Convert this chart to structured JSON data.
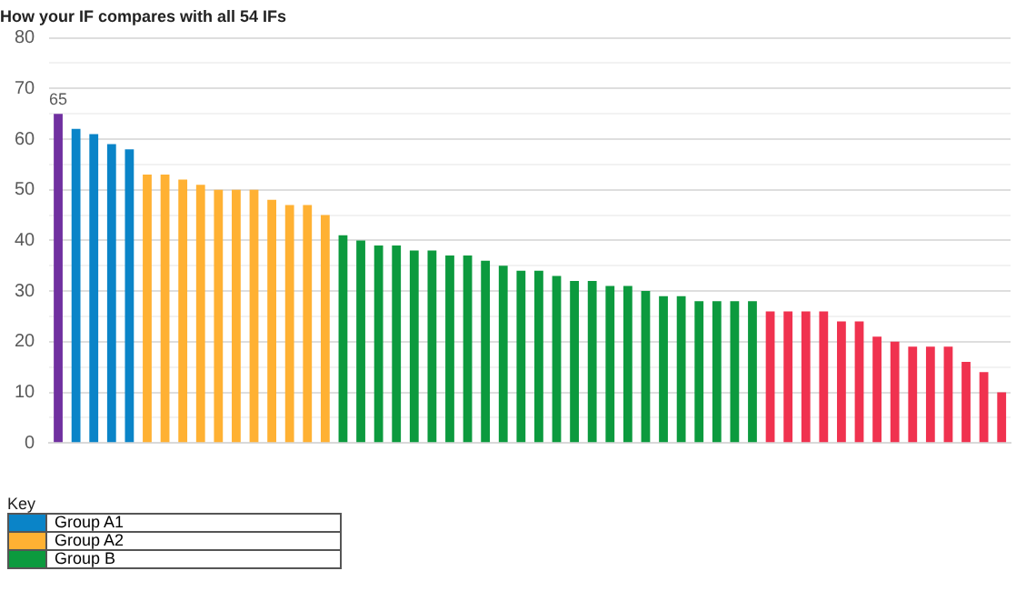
{
  "chart_data": {
    "type": "bar",
    "title": "How your IF compares with all 54 IFs",
    "categories": [
      null,
      null,
      null,
      null,
      null,
      null,
      null,
      null,
      null,
      null,
      null,
      null,
      null,
      null,
      null,
      null,
      null,
      null,
      null,
      null,
      null,
      null,
      null,
      null,
      null,
      null,
      null,
      null,
      null,
      null,
      null,
      null,
      null,
      null,
      null,
      null,
      null,
      null,
      null,
      null,
      null,
      null,
      null,
      null,
      null,
      null,
      null,
      null,
      null,
      null,
      null,
      null,
      null,
      null
    ],
    "series": [
      {
        "color": "#7030a0",
        "values": [
          65,
          null,
          null,
          null,
          null,
          null,
          null,
          null,
          null,
          null,
          null,
          null,
          null,
          null,
          null,
          null,
          null,
          null,
          null,
          null,
          null,
          null,
          null,
          null,
          null,
          null,
          null,
          null,
          null,
          null,
          null,
          null,
          null,
          null,
          null,
          null,
          null,
          null,
          null,
          null,
          null,
          null,
          null,
          null,
          null,
          null,
          null,
          null,
          null,
          null,
          null,
          null,
          null,
          null
        ],
        "value_labels": [
          "65",
          null,
          null,
          null,
          null,
          null,
          null,
          null,
          null,
          null,
          null,
          null,
          null,
          null,
          null,
          null,
          null,
          null,
          null,
          null,
          null,
          null,
          null,
          null,
          null,
          null,
          null,
          null,
          null,
          null,
          null,
          null,
          null,
          null,
          null,
          null,
          null,
          null,
          null,
          null,
          null,
          null,
          null,
          null,
          null,
          null,
          null,
          null,
          null,
          null,
          null,
          null,
          null,
          null
        ]
      },
      {
        "name": "Group A1",
        "color": "#0a84c8",
        "values": [
          null,
          62,
          61,
          59,
          58,
          null,
          null,
          null,
          null,
          null,
          null,
          null,
          null,
          null,
          null,
          null,
          null,
          null,
          null,
          null,
          null,
          null,
          null,
          null,
          null,
          null,
          null,
          null,
          null,
          null,
          null,
          null,
          null,
          null,
          null,
          null,
          null,
          null,
          null,
          null,
          null,
          null,
          null,
          null,
          null,
          null,
          null,
          null,
          null,
          null,
          null,
          null,
          null,
          null
        ]
      },
      {
        "name": "Group A2",
        "color": "#ffb133",
        "values": [
          null,
          null,
          null,
          null,
          null,
          53,
          53,
          52,
          51,
          50,
          50,
          50,
          48,
          47,
          47,
          45,
          null,
          null,
          null,
          null,
          null,
          null,
          null,
          null,
          null,
          null,
          null,
          null,
          null,
          null,
          null,
          null,
          null,
          null,
          null,
          null,
          null,
          null,
          null,
          null,
          null,
          null,
          null,
          null,
          null,
          null,
          null,
          null,
          null,
          null,
          null,
          null,
          null,
          null
        ]
      },
      {
        "name": "Group B",
        "color": "#0c9a3e",
        "values": [
          null,
          null,
          null,
          null,
          null,
          null,
          null,
          null,
          null,
          null,
          null,
          null,
          null,
          null,
          null,
          null,
          41,
          40,
          39,
          39,
          38,
          38,
          37,
          37,
          36,
          35,
          34,
          34,
          33,
          32,
          32,
          31,
          31,
          30,
          29,
          29,
          28,
          28,
          28,
          28,
          null,
          null,
          null,
          null,
          null,
          null,
          null,
          null,
          null,
          null,
          null,
          null,
          null,
          null
        ]
      },
      {
        "color": "#f0324f",
        "values": [
          null,
          null,
          null,
          null,
          null,
          null,
          null,
          null,
          null,
          null,
          null,
          null,
          null,
          null,
          null,
          null,
          null,
          null,
          null,
          null,
          null,
          null,
          null,
          null,
          null,
          null,
          null,
          null,
          null,
          null,
          null,
          null,
          null,
          null,
          null,
          null,
          null,
          null,
          null,
          null,
          26,
          26,
          26,
          26,
          24,
          24,
          21,
          20,
          19,
          19,
          19,
          16,
          14,
          10
        ]
      }
    ],
    "ylim": [
      0,
      80
    ],
    "yticks": [
      0,
      {
        "value": 5,
        "label": null
      },
      10,
      {
        "value": 15,
        "label": null
      },
      20,
      {
        "value": 25,
        "label": null
      },
      30,
      {
        "value": 35,
        "label": null
      },
      40,
      {
        "value": 45,
        "label": null
      },
      50,
      {
        "value": 55,
        "label": null
      },
      60,
      {
        "value": 65,
        "label": null
      },
      70,
      {
        "value": 75,
        "label": null
      },
      80
    ],
    "grid": "y",
    "legend": "bottom",
    "legend_title": "Key"
  }
}
